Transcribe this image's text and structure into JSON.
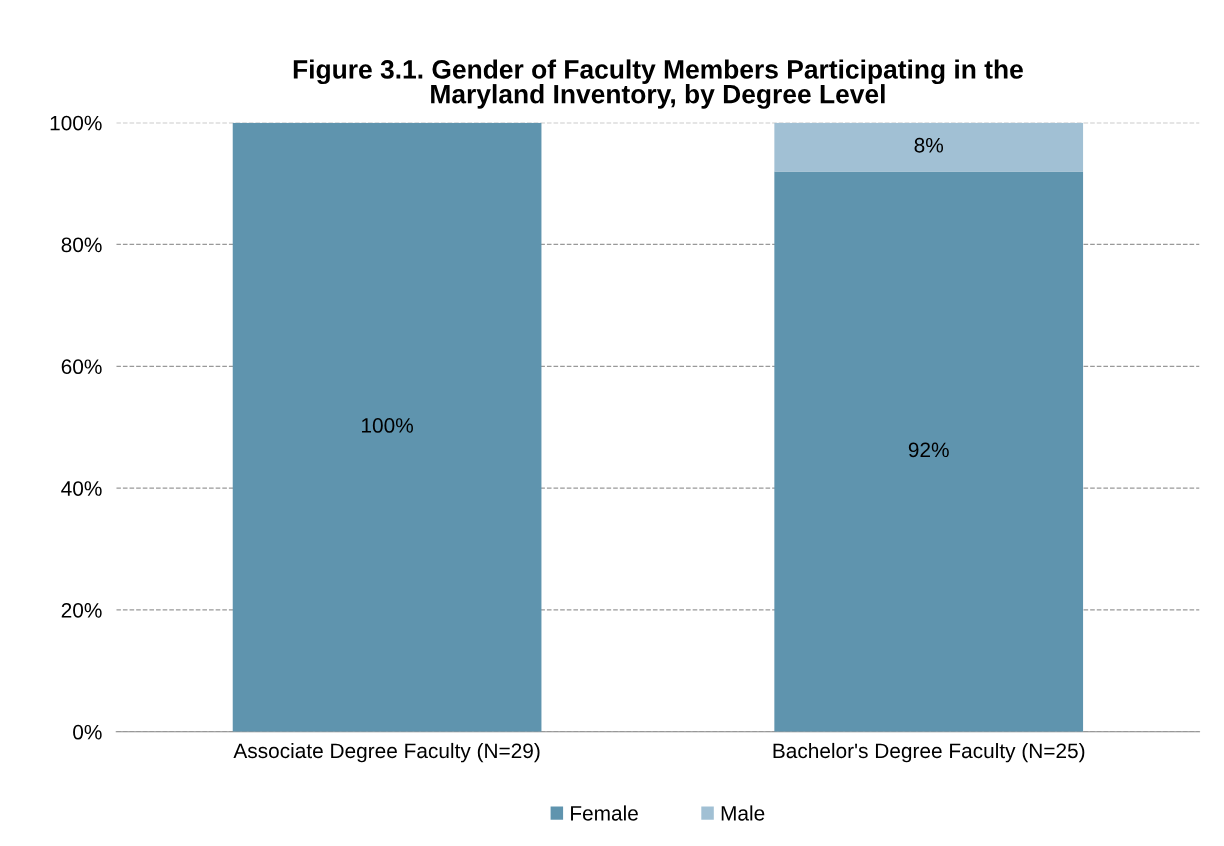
{
  "chart_data": {
    "type": "bar",
    "stacked": true,
    "title": "Figure 3.1. Gender of Faculty Members Participating in the\nMaryland Inventory, by Degree Level",
    "categories": [
      "Associate Degree Faculty (N=29)",
      "Bachelor's Degree Faculty (N=25)"
    ],
    "series": [
      {
        "name": "Female",
        "color": "#5f94ae",
        "values": [
          100,
          92
        ],
        "value_labels": [
          "100%",
          "92%"
        ]
      },
      {
        "name": "Male",
        "color": "#a1c0d4",
        "values": [
          0,
          8
        ],
        "value_labels": [
          null,
          "8%"
        ]
      }
    ],
    "ylim": [
      0,
      100
    ],
    "yticks": [
      {
        "value": 0,
        "label": "0%"
      },
      {
        "value": 20,
        "label": "20%"
      },
      {
        "value": 40,
        "label": "40%"
      },
      {
        "value": 60,
        "label": "60%"
      },
      {
        "value": 80,
        "label": "80%"
      },
      {
        "value": 100,
        "label": "100%"
      }
    ],
    "grid": "y",
    "legend": "bottom"
  }
}
